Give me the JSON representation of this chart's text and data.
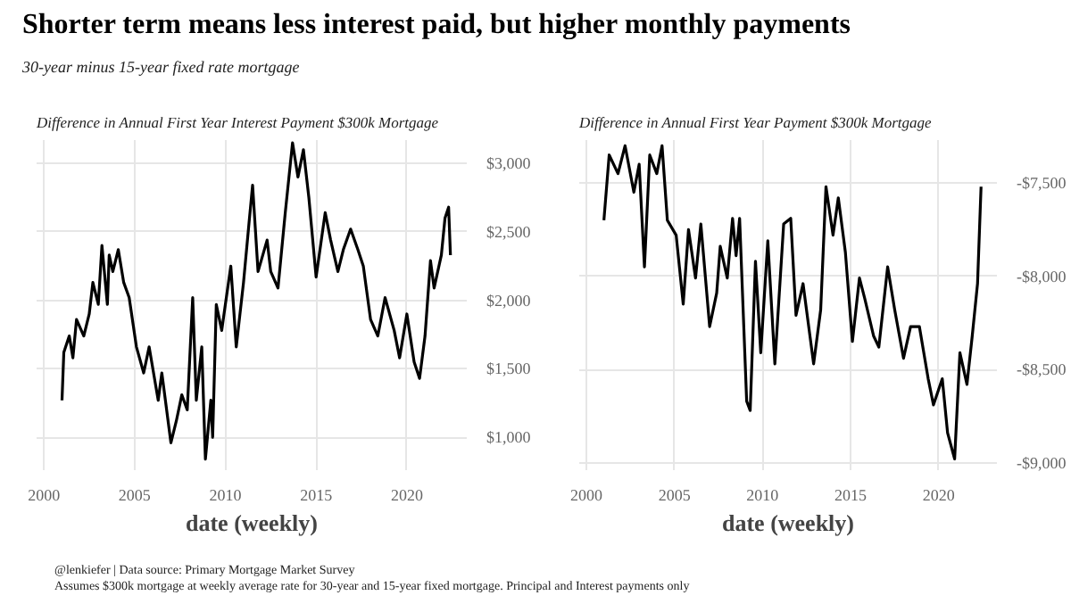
{
  "chart_data": [
    {
      "type": "other",
      "title": "Shorter term means less interest paid, but higher monthly payments",
      "subtitle": "30-year minus 15-year fixed rate mortgage",
      "annotations": [
        "@lenkiefer | Data source: Primary Mortgage Market Survey",
        "Assumes $300k mortgage at weekly average rate for 30-year and 15-year fixed mortgage. Principal and Interest payments only"
      ]
    },
    {
      "type": "line",
      "title": "Difference in Annual First Year Interest Payment $300k Mortgage",
      "xlabel": "date (weekly)",
      "grid": true,
      "x": [
        2001.0,
        2001.1,
        2001.4,
        2001.6,
        2001.8,
        2002.2,
        2002.5,
        2002.7,
        2003.0,
        2003.2,
        2003.5,
        2003.6,
        2003.8,
        2004.1,
        2004.4,
        2004.7,
        2005.1,
        2005.5,
        2005.8,
        2006.3,
        2006.5,
        2007.0,
        2007.3,
        2007.6,
        2007.9,
        2008.2,
        2008.4,
        2008.7,
        2008.9,
        2009.2,
        2009.3,
        2009.5,
        2009.8,
        2010.0,
        2010.3,
        2010.6,
        2011.0,
        2011.3,
        2011.5,
        2011.8,
        2012.3,
        2012.5,
        2012.9,
        2013.3,
        2013.7,
        2014.0,
        2014.3,
        2014.6,
        2015.0,
        2015.5,
        2015.8,
        2016.2,
        2016.5,
        2016.9,
        2017.3,
        2017.6,
        2018.0,
        2018.4,
        2018.8,
        2019.3,
        2019.6,
        2020.0,
        2020.4,
        2020.7,
        2021.0,
        2021.3,
        2021.5,
        2021.9,
        2022.1,
        2022.3,
        2022.4
      ],
      "series": [
        {
          "color": "#000000",
          "values": [
            1270,
            1620,
            1740,
            1580,
            1860,
            1740,
            1900,
            2130,
            1970,
            2400,
            1970,
            2330,
            2210,
            2370,
            2130,
            2020,
            1660,
            1470,
            1660,
            1270,
            1470,
            960,
            1120,
            1310,
            1200,
            2020,
            1270,
            1660,
            840,
            1270,
            1000,
            1970,
            1780,
            1970,
            2250,
            1660,
            2130,
            2560,
            2840,
            2210,
            2440,
            2210,
            2090,
            2640,
            3150,
            2900,
            3100,
            2750,
            2170,
            2640,
            2440,
            2210,
            2370,
            2520,
            2370,
            2250,
            1860,
            1740,
            2020,
            1780,
            1580,
            1900,
            1550,
            1430,
            1740,
            2290,
            2090,
            2330,
            2600,
            2680,
            2330
          ]
        }
      ],
      "xlim": [
        1999.6,
        2023.3
      ],
      "xticks": [
        2000,
        2005,
        2010,
        2015,
        2020
      ],
      "ylim": [
        760,
        3170
      ],
      "yticks": [
        {
          "value": 1000,
          "label": "$1,000"
        },
        {
          "value": 1500,
          "label": "$1,500"
        },
        {
          "value": 2000,
          "label": "$2,000"
        },
        {
          "value": 2500,
          "label": "$2,500"
        },
        {
          "value": 3000,
          "label": "$3,000"
        }
      ]
    },
    {
      "type": "line",
      "title": "Difference in Annual First Year Payment $300k Mortgage",
      "xlabel": "date (weekly)",
      "grid": true,
      "x": [
        2001.0,
        2001.3,
        2001.8,
        2002.2,
        2002.7,
        2003.0,
        2003.3,
        2003.6,
        2004.0,
        2004.3,
        2004.6,
        2005.1,
        2005.5,
        2005.8,
        2006.2,
        2006.5,
        2007.0,
        2007.4,
        2007.6,
        2008.0,
        2008.3,
        2008.5,
        2008.7,
        2009.1,
        2009.3,
        2009.6,
        2009.9,
        2010.3,
        2010.7,
        2011.2,
        2011.6,
        2011.9,
        2012.3,
        2012.9,
        2013.3,
        2013.6,
        2014.0,
        2014.3,
        2014.7,
        2015.1,
        2015.5,
        2015.8,
        2016.3,
        2016.6,
        2017.1,
        2017.5,
        2018.0,
        2018.4,
        2018.9,
        2019.4,
        2019.7,
        2020.2,
        2020.5,
        2020.9,
        2021.2,
        2021.6,
        2021.9,
        2022.2,
        2022.4
      ],
      "series": [
        {
          "color": "#000000",
          "values": [
            -7700,
            -7350,
            -7450,
            -7300,
            -7550,
            -7400,
            -7950,
            -7350,
            -7450,
            -7300,
            -7700,
            -7780,
            -8150,
            -7750,
            -8010,
            -7720,
            -8270,
            -8090,
            -7840,
            -8010,
            -7690,
            -7890,
            -7690,
            -8670,
            -8720,
            -7920,
            -8410,
            -7810,
            -8470,
            -7720,
            -7690,
            -8210,
            -8040,
            -8470,
            -8180,
            -7520,
            -7780,
            -7580,
            -7870,
            -8350,
            -8010,
            -8120,
            -8320,
            -8380,
            -7950,
            -8180,
            -8440,
            -8270,
            -8270,
            -8550,
            -8690,
            -8550,
            -8840,
            -8980,
            -8410,
            -8580,
            -8320,
            -8040,
            -7520
          ]
        }
      ],
      "xlim": [
        1999.6,
        2023.3
      ],
      "xticks": [
        2000,
        2005,
        2010,
        2015,
        2020
      ],
      "ylim": [
        -9040,
        -7270
      ],
      "yticks": [
        {
          "value": -9000,
          "label": "-$9,000"
        },
        {
          "value": -8500,
          "label": "-$8,500"
        },
        {
          "value": -8000,
          "label": "-$8,000"
        },
        {
          "value": -7500,
          "label": "-$7,500"
        }
      ]
    }
  ]
}
